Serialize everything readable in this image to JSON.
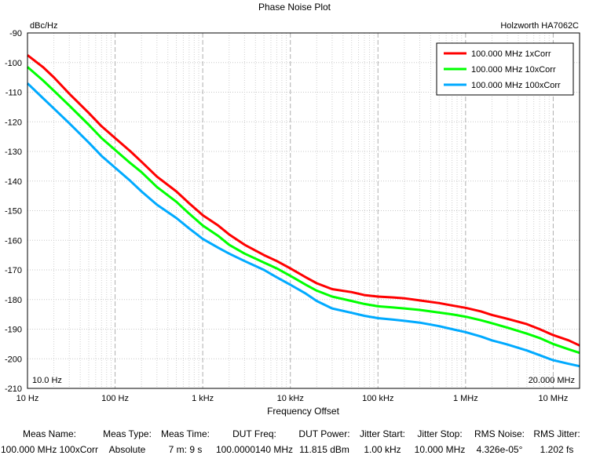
{
  "chart_data": {
    "type": "line",
    "title": "Phase Noise Plot",
    "instrument": "Holzworth HA7062C",
    "ylabel": "dBc/Hz",
    "xlabel": "Frequency Offset",
    "xscale": "log",
    "xlim": [
      10,
      20000000
    ],
    "ylim": [
      -210,
      -90
    ],
    "grid": true,
    "legend_position": "top-right",
    "x_tick_values": [
      10,
      100,
      1000,
      10000,
      100000,
      1000000,
      10000000
    ],
    "x_tick_labels": [
      "10 Hz",
      "100 Hz",
      "1 kHz",
      "10 kHz",
      "100 kHz",
      "1 MHz",
      "10 MHz"
    ],
    "y_ticks": [
      -90,
      -100,
      -110,
      -120,
      -130,
      -140,
      -150,
      -160,
      -170,
      -180,
      -190,
      -200,
      -210
    ],
    "start_marker": "10.0 Hz",
    "stop_marker": "20.000 MHz",
    "x": [
      10,
      15,
      20,
      30,
      50,
      70,
      100,
      150,
      200,
      300,
      500,
      700,
      1000,
      1500,
      2000,
      3000,
      5000,
      7000,
      10000,
      15000,
      20000,
      30000,
      50000,
      70000,
      100000,
      150000,
      200000,
      300000,
      500000,
      700000,
      1000000,
      1500000,
      2000000,
      3000000,
      5000000,
      7000000,
      10000000,
      15000000,
      20000000
    ],
    "series": [
      {
        "name": "100.000 MHz 1xCorr",
        "color": "#ff0000",
        "values": [
          -97.5,
          -101.5,
          -105,
          -110.5,
          -117,
          -121.5,
          -125.5,
          -130,
          -133.5,
          -138.5,
          -143.5,
          -147.5,
          -151.5,
          -155,
          -158,
          -161.5,
          -165,
          -167,
          -169.5,
          -172.5,
          -174.5,
          -176.5,
          -177.5,
          -178.5,
          -179,
          -179.3,
          -179.6,
          -180.3,
          -181.2,
          -182,
          -182.8,
          -184,
          -185.2,
          -186.5,
          -188.3,
          -190,
          -192,
          -193.8,
          -195.5
        ]
      },
      {
        "name": "100.000 MHz 10xCorr",
        "color": "#00ff00",
        "values": [
          -101.5,
          -106,
          -109.5,
          -114.5,
          -121,
          -125.5,
          -129.5,
          -134,
          -137,
          -142,
          -147,
          -151,
          -155,
          -158.5,
          -161.5,
          -164.5,
          -167.5,
          -169.5,
          -172,
          -175,
          -177,
          -179,
          -180.5,
          -181.5,
          -182.3,
          -182.7,
          -183,
          -183.5,
          -184.4,
          -185,
          -185.8,
          -187,
          -188,
          -189.5,
          -191.5,
          -193,
          -195,
          -196.8,
          -198
        ]
      },
      {
        "name": "100.000 MHz 100xCorr",
        "color": "#00aaff",
        "values": [
          -107,
          -112,
          -115.5,
          -120.5,
          -127,
          -131.5,
          -135.5,
          -140,
          -143.5,
          -148,
          -152.5,
          -156,
          -159.5,
          -162.5,
          -164.5,
          -167,
          -170,
          -172.5,
          -175,
          -178,
          -180.5,
          -183,
          -184.5,
          -185.5,
          -186.3,
          -186.8,
          -187.2,
          -187.8,
          -189,
          -190,
          -191,
          -192.5,
          -193.8,
          -195.2,
          -197.2,
          -198.8,
          -200.5,
          -201.7,
          -202.5
        ]
      }
    ]
  },
  "measurements": {
    "headers": [
      "Meas Name:",
      "Meas Type:",
      "Meas Time:",
      "DUT Freq:",
      "DUT Power:",
      "Jitter Start:",
      "Jitter Stop:",
      "RMS Noise:",
      "RMS Jitter:"
    ],
    "values": [
      "100.000 MHz 100xCorr",
      "Absolute",
      "7 m: 9 s",
      "100.0000140 MHz",
      "11.815 dBm",
      "1.00 kHz",
      "10.000 MHz",
      "4.326e-05°",
      "1.202 fs"
    ]
  }
}
